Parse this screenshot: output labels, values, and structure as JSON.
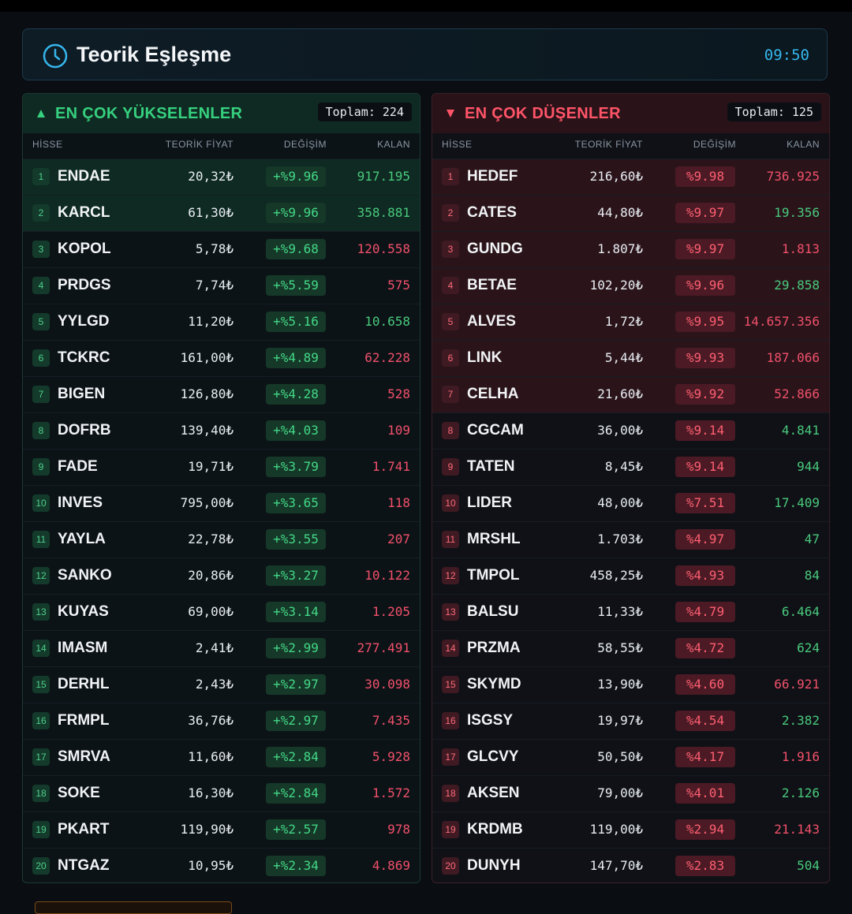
{
  "header": {
    "title": "Teorik Eşleşme",
    "time": "09:50"
  },
  "columns": [
    "HİSSE",
    "TEORİK FİYAT",
    "DEĞİŞİM",
    "KALAN"
  ],
  "gainers": {
    "title": "EN ÇOK YÜKSELENLER",
    "total": "Toplam: 224",
    "rows": [
      [
        "1",
        "ENDAE",
        "20,32₺",
        "+%9.96",
        "917.195",
        "#49c97c"
      ],
      [
        "2",
        "KARCL",
        "61,30₺",
        "+%9.96",
        "358.881",
        "#49c97c"
      ],
      [
        "3",
        "KOPOL",
        "5,78₺",
        "+%9.68",
        "120.558",
        "#f0506a"
      ],
      [
        "4",
        "PRDGS",
        "7,74₺",
        "+%5.59",
        "575",
        "#f0506a"
      ],
      [
        "5",
        "YYLGD",
        "11,20₺",
        "+%5.16",
        "10.658",
        "#49c97c"
      ],
      [
        "6",
        "TCKRC",
        "161,00₺",
        "+%4.89",
        "62.228",
        "#f0506a"
      ],
      [
        "7",
        "BIGEN",
        "126,80₺",
        "+%4.28",
        "528",
        "#f0506a"
      ],
      [
        "8",
        "DOFRB",
        "139,40₺",
        "+%4.03",
        "109",
        "#f0506a"
      ],
      [
        "9",
        "FADE",
        "19,71₺",
        "+%3.79",
        "1.741",
        "#f0506a"
      ],
      [
        "10",
        "INVES",
        "795,00₺",
        "+%3.65",
        "118",
        "#f0506a"
      ],
      [
        "11",
        "YAYLA",
        "22,78₺",
        "+%3.55",
        "207",
        "#f0506a"
      ],
      [
        "12",
        "SANKO",
        "20,86₺",
        "+%3.27",
        "10.122",
        "#f0506a"
      ],
      [
        "13",
        "KUYAS",
        "69,00₺",
        "+%3.14",
        "1.205",
        "#f0506a"
      ],
      [
        "14",
        "IMASM",
        "2,41₺",
        "+%2.99",
        "277.491",
        "#f0506a"
      ],
      [
        "15",
        "DERHL",
        "2,43₺",
        "+%2.97",
        "30.098",
        "#f0506a"
      ],
      [
        "16",
        "FRMPL",
        "36,76₺",
        "+%2.97",
        "7.435",
        "#f0506a"
      ],
      [
        "17",
        "SMRVA",
        "11,60₺",
        "+%2.84",
        "5.928",
        "#f0506a"
      ],
      [
        "18",
        "SOKE",
        "16,30₺",
        "+%2.84",
        "1.572",
        "#f0506a"
      ],
      [
        "19",
        "PKART",
        "119,90₺",
        "+%2.57",
        "978",
        "#f0506a"
      ],
      [
        "20",
        "NTGAZ",
        "10,95₺",
        "+%2.34",
        "4.869",
        "#f0506a"
      ]
    ]
  },
  "losers": {
    "title": "EN ÇOK DÜŞENLER",
    "total": "Toplam: 125",
    "rows": [
      [
        "1",
        "HEDEF",
        "216,60₺",
        "%9.98",
        "736.925",
        "#f0506a"
      ],
      [
        "2",
        "CATES",
        "44,80₺",
        "%9.97",
        "19.356",
        "#49c97c"
      ],
      [
        "3",
        "GUNDG",
        "1.807₺",
        "%9.97",
        "1.813",
        "#f0506a"
      ],
      [
        "4",
        "BETAE",
        "102,20₺",
        "%9.96",
        "29.858",
        "#49c97c"
      ],
      [
        "5",
        "ALVES",
        "1,72₺",
        "%9.95",
        "14.657.356",
        "#f0506a"
      ],
      [
        "6",
        "LINK",
        "5,44₺",
        "%9.93",
        "187.066",
        "#f0506a"
      ],
      [
        "7",
        "CELHA",
        "21,60₺",
        "%9.92",
        "52.866",
        "#f0506a"
      ],
      [
        "8",
        "CGCAM",
        "36,00₺",
        "%9.14",
        "4.841",
        "#49c97c"
      ],
      [
        "9",
        "TATEN",
        "8,45₺",
        "%9.14",
        "944",
        "#49c97c"
      ],
      [
        "10",
        "LIDER",
        "48,00₺",
        "%7.51",
        "17.409",
        "#49c97c"
      ],
      [
        "11",
        "MRSHL",
        "1.703₺",
        "%4.97",
        "47",
        "#49c97c"
      ],
      [
        "12",
        "TMPOL",
        "458,25₺",
        "%4.93",
        "84",
        "#49c97c"
      ],
      [
        "13",
        "BALSU",
        "11,33₺",
        "%4.79",
        "6.464",
        "#49c97c"
      ],
      [
        "14",
        "PRZMA",
        "58,55₺",
        "%4.72",
        "624",
        "#49c97c"
      ],
      [
        "15",
        "SKYMD",
        "13,90₺",
        "%4.60",
        "66.921",
        "#f0506a"
      ],
      [
        "16",
        "ISGSY",
        "19,97₺",
        "%4.54",
        "2.382",
        "#49c97c"
      ],
      [
        "17",
        "GLCVY",
        "50,50₺",
        "%4.17",
        "1.916",
        "#f0506a"
      ],
      [
        "18",
        "AKSEN",
        "79,00₺",
        "%4.01",
        "2.126",
        "#49c97c"
      ],
      [
        "19",
        "KRDMB",
        "119,00₺",
        "%2.94",
        "21.143",
        "#f0506a"
      ],
      [
        "20",
        "DUNYH",
        "147,70₺",
        "%2.83",
        "504",
        "#49c97c"
      ]
    ]
  }
}
